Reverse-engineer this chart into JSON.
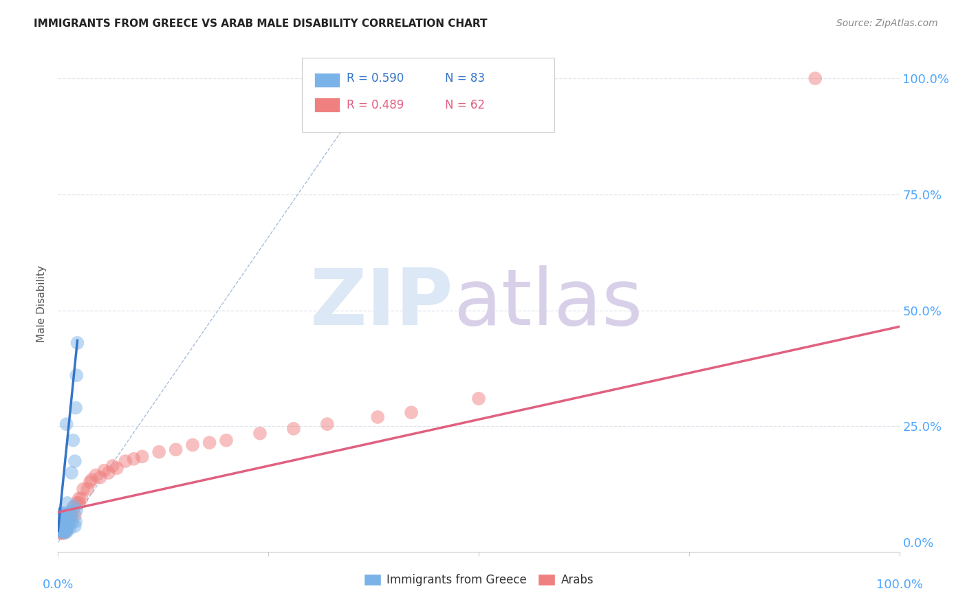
{
  "title": "IMMIGRANTS FROM GREECE VS ARAB MALE DISABILITY CORRELATION CHART",
  "source": "Source: ZipAtlas.com",
  "ylabel": "Male Disability",
  "xlim": [
    0,
    1.0
  ],
  "ylim": [
    -0.02,
    1.05
  ],
  "blue_R": 0.59,
  "blue_N": 83,
  "pink_R": 0.489,
  "pink_N": 62,
  "blue_color": "#7ab3e8",
  "pink_color": "#f08080",
  "blue_line_color": "#3575c8",
  "pink_line_color": "#e06080",
  "diag_line_color": "#a0b8d8",
  "tick_label_color": "#4da6ff",
  "grid_color": "#d8dde8",
  "blue_points_x": [
    0.001,
    0.002,
    0.002,
    0.002,
    0.002,
    0.003,
    0.003,
    0.003,
    0.003,
    0.003,
    0.003,
    0.003,
    0.003,
    0.003,
    0.003,
    0.003,
    0.003,
    0.003,
    0.003,
    0.003,
    0.003,
    0.003,
    0.003,
    0.003,
    0.004,
    0.004,
    0.004,
    0.004,
    0.004,
    0.004,
    0.004,
    0.004,
    0.004,
    0.004,
    0.005,
    0.005,
    0.005,
    0.005,
    0.005,
    0.005,
    0.005,
    0.005,
    0.005,
    0.005,
    0.006,
    0.006,
    0.006,
    0.006,
    0.006,
    0.006,
    0.006,
    0.006,
    0.006,
    0.007,
    0.007,
    0.007,
    0.007,
    0.007,
    0.008,
    0.008,
    0.008,
    0.009,
    0.009,
    0.01,
    0.01,
    0.011,
    0.011,
    0.012,
    0.013,
    0.014,
    0.014,
    0.015,
    0.016,
    0.017,
    0.018,
    0.019,
    0.02,
    0.02,
    0.021,
    0.021,
    0.022,
    0.022,
    0.023
  ],
  "blue_points_y": [
    0.035,
    0.028,
    0.038,
    0.042,
    0.031,
    0.025,
    0.032,
    0.04,
    0.045,
    0.05,
    0.033,
    0.038,
    0.043,
    0.055,
    0.06,
    0.028,
    0.035,
    0.042,
    0.03,
    0.037,
    0.044,
    0.052,
    0.048,
    0.058,
    0.025,
    0.033,
    0.04,
    0.048,
    0.055,
    0.063,
    0.03,
    0.038,
    0.045,
    0.053,
    0.022,
    0.03,
    0.038,
    0.045,
    0.052,
    0.06,
    0.028,
    0.035,
    0.043,
    0.05,
    0.025,
    0.032,
    0.04,
    0.048,
    0.055,
    0.063,
    0.03,
    0.038,
    0.045,
    0.025,
    0.033,
    0.04,
    0.048,
    0.055,
    0.022,
    0.03,
    0.038,
    0.025,
    0.033,
    0.022,
    0.255,
    0.03,
    0.085,
    0.038,
    0.065,
    0.03,
    0.048,
    0.065,
    0.15,
    0.045,
    0.22,
    0.078,
    0.175,
    0.035,
    0.29,
    0.045,
    0.36,
    0.07,
    0.43
  ],
  "pink_points_x": [
    0.001,
    0.001,
    0.002,
    0.002,
    0.002,
    0.003,
    0.003,
    0.003,
    0.003,
    0.003,
    0.004,
    0.004,
    0.004,
    0.005,
    0.005,
    0.005,
    0.005,
    0.006,
    0.006,
    0.006,
    0.007,
    0.007,
    0.008,
    0.008,
    0.009,
    0.01,
    0.011,
    0.012,
    0.013,
    0.015,
    0.016,
    0.018,
    0.02,
    0.022,
    0.025,
    0.025,
    0.028,
    0.03,
    0.035,
    0.038,
    0.04,
    0.045,
    0.05,
    0.055,
    0.06,
    0.065,
    0.07,
    0.08,
    0.09,
    0.1,
    0.12,
    0.14,
    0.16,
    0.18,
    0.2,
    0.24,
    0.28,
    0.32,
    0.38,
    0.42,
    0.5,
    0.9
  ],
  "pink_points_y": [
    0.03,
    0.045,
    0.025,
    0.038,
    0.052,
    0.02,
    0.033,
    0.04,
    0.048,
    0.06,
    0.025,
    0.035,
    0.045,
    0.02,
    0.03,
    0.04,
    0.055,
    0.025,
    0.035,
    0.048,
    0.02,
    0.035,
    0.025,
    0.038,
    0.03,
    0.025,
    0.038,
    0.048,
    0.04,
    0.06,
    0.058,
    0.075,
    0.058,
    0.085,
    0.085,
    0.095,
    0.095,
    0.115,
    0.115,
    0.13,
    0.135,
    0.145,
    0.14,
    0.155,
    0.15,
    0.165,
    0.16,
    0.175,
    0.18,
    0.185,
    0.195,
    0.2,
    0.21,
    0.215,
    0.22,
    0.235,
    0.245,
    0.255,
    0.27,
    0.28,
    0.31,
    1.0
  ],
  "blue_line_x": [
    0.0,
    0.023
  ],
  "blue_line_y": [
    0.025,
    0.435
  ],
  "pink_line_x": [
    0.0,
    1.0
  ],
  "pink_line_y": [
    0.065,
    0.465
  ],
  "diag_line_x": [
    0.0,
    0.38
  ],
  "diag_line_y": [
    0.0,
    1.0
  ],
  "x_ticks": [
    0.0,
    1.0
  ],
  "x_tick_labels": [
    "0.0%",
    "100.0%"
  ],
  "right_y_ticks": [
    0.0,
    0.25,
    0.5,
    0.75,
    1.0
  ],
  "right_y_tick_labels": [
    "0.0%",
    "25.0%",
    "50.0%",
    "75.0%",
    "100.0%"
  ]
}
